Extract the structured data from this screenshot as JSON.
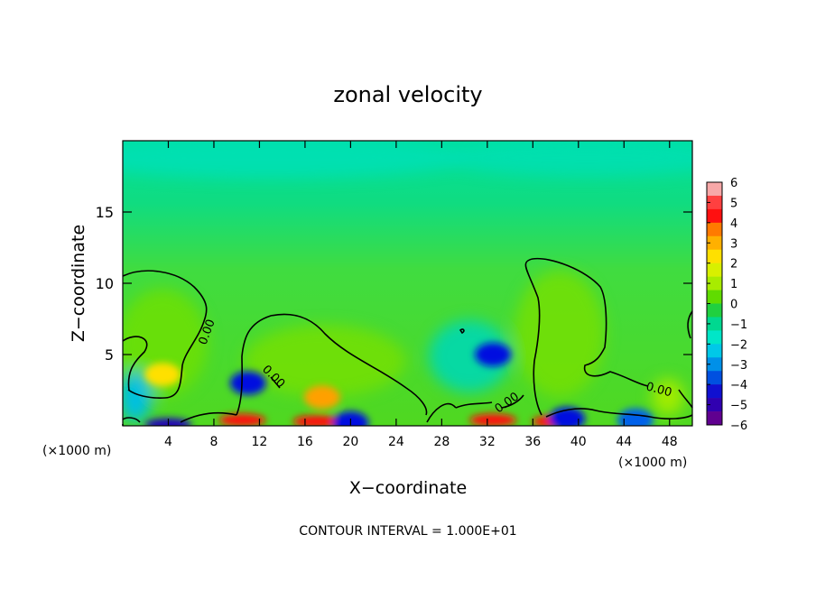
{
  "chart_data": {
    "type": "heatmap",
    "title": "zonal velocity",
    "xlabel": "X−coordinate",
    "ylabel": "Z−coordinate",
    "x_unit_left": "(×1000 m)",
    "x_unit_right": "(×1000 m)",
    "xlim": [
      0,
      50
    ],
    "ylim": [
      0,
      20
    ],
    "x_ticks": [
      4,
      8,
      12,
      16,
      20,
      24,
      28,
      32,
      36,
      40,
      44,
      48
    ],
    "y_ticks": [
      5,
      10,
      15
    ],
    "colorbar": {
      "ticks": [
        "6",
        "5",
        "4",
        "3",
        "2",
        "1",
        "0",
        "−1",
        "−2",
        "−3",
        "−4",
        "−5",
        "−6"
      ],
      "range": [
        -6,
        6
      ],
      "colors": [
        "#f7a8a8",
        "#ff4040",
        "#ff1010",
        "#ff7a00",
        "#ffb000",
        "#ffe000",
        "#d8f000",
        "#a8ec00",
        "#60dc00",
        "#20d040",
        "#00d890",
        "#00e6c8",
        "#00c8e8",
        "#0090e8",
        "#0050e0",
        "#1010d0",
        "#3000b0",
        "#600090"
      ]
    },
    "contour_label": "0.00",
    "contour_labels": [
      "0.00",
      "0.00",
      "0.00",
      "0.00"
    ],
    "footer": "CONTOUR INTERVAL = 1.000E+01",
    "features": [
      {
        "x": 11,
        "z": 3.0,
        "value": -4.5
      },
      {
        "x": 32.5,
        "z": 5.0,
        "value": -4.0
      },
      {
        "x": 17.5,
        "z": 2.0,
        "value": 3.0
      },
      {
        "x": 3.5,
        "z": 3.6,
        "value": 2.5
      },
      {
        "x": 10.5,
        "z": 0.4,
        "value": 5.0
      },
      {
        "x": 17,
        "z": 0.3,
        "value": 5.5
      },
      {
        "x": 32.5,
        "z": 0.4,
        "value": 5.0
      },
      {
        "x": 38,
        "z": 0.3,
        "value": 5.5
      },
      {
        "x": 4,
        "z": 0.1,
        "value": -5.0
      },
      {
        "x": 20,
        "z": 0.2,
        "value": -4.0
      },
      {
        "x": 39,
        "z": 0.5,
        "value": -4.5
      },
      {
        "x": 45,
        "z": 0.4,
        "value": -3.5
      }
    ]
  }
}
